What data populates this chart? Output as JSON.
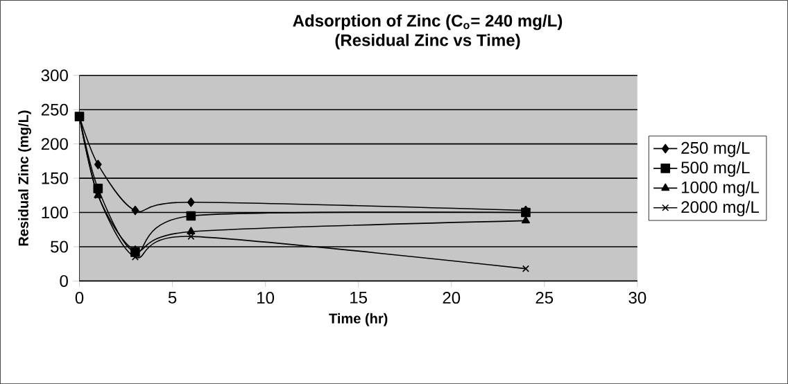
{
  "chart_data": {
    "type": "line",
    "title": "Adsorption of Zinc (C$_{o}$= 240 mg/L)",
    "subtitle": "(Residual Zinc vs Time)",
    "xlabel": "Time (hr)",
    "ylabel": "Residual Zinc (mg/L)",
    "x": [
      0,
      1,
      3,
      6,
      24
    ],
    "series": [
      {
        "name": "250 mg/L",
        "color": "#000000",
        "marker": "diamond",
        "values": [
          240,
          170,
          103,
          115,
          103
        ]
      },
      {
        "name": "500 mg/L",
        "color": "#000000",
        "marker": "square",
        "values": [
          240,
          135,
          42,
          95,
          100
        ]
      },
      {
        "name": "1000 mg/L",
        "color": "#000000",
        "marker": "triangle",
        "values": [
          240,
          125,
          45,
          72,
          88
        ]
      },
      {
        "name": "2000 mg/L",
        "color": "#000000",
        "marker": "cross",
        "values": [
          240,
          125,
          35,
          65,
          18
        ]
      }
    ],
    "xlim": [
      0,
      30
    ],
    "xticks": [
      0,
      5,
      10,
      15,
      20,
      25,
      30
    ],
    "ylim": [
      0,
      300
    ],
    "yticks": [
      0,
      50,
      100,
      150,
      200,
      250,
      300
    ],
    "grid": "y",
    "legend": "right"
  }
}
